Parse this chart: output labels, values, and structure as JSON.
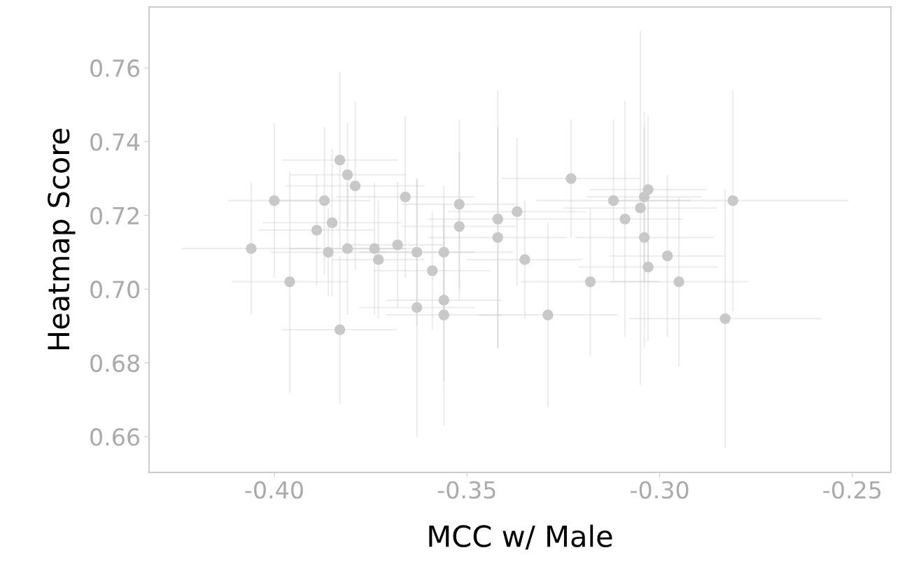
{
  "chart_data": {
    "type": "scatter",
    "xlabel": "MCC w/ Male",
    "ylabel": "Heatmap Score",
    "x": [
      -0.406,
      -0.4,
      -0.396,
      -0.389,
      -0.387,
      -0.386,
      -0.385,
      -0.383,
      -0.383,
      -0.381,
      -0.381,
      -0.379,
      -0.374,
      -0.373,
      -0.368,
      -0.366,
      -0.363,
      -0.363,
      -0.359,
      -0.356,
      -0.356,
      -0.356,
      -0.352,
      -0.352,
      -0.342,
      -0.342,
      -0.337,
      -0.335,
      -0.329,
      -0.323,
      -0.318,
      -0.312,
      -0.309,
      -0.305,
      -0.304,
      -0.303,
      -0.304,
      -0.303,
      -0.298,
      -0.295,
      -0.283,
      -0.281
    ],
    "values": [
      0.711,
      0.724,
      0.702,
      0.716,
      0.724,
      0.71,
      0.718,
      0.735,
      0.689,
      0.731,
      0.711,
      0.728,
      0.711,
      0.708,
      0.712,
      0.725,
      0.695,
      0.71,
      0.705,
      0.71,
      0.697,
      0.693,
      0.717,
      0.723,
      0.719,
      0.714,
      0.721,
      0.708,
      0.693,
      0.73,
      0.702,
      0.724,
      0.719,
      0.722,
      0.725,
      0.727,
      0.714,
      0.706,
      0.709,
      0.702,
      0.692,
      0.724
    ],
    "errors": [
      0.018,
      0.021,
      0.03,
      0.015,
      0.02,
      0.012,
      0.02,
      0.024,
      0.02,
      0.014,
      0.018,
      0.023,
      0.018,
      0.016,
      0.017,
      0.022,
      0.035,
      0.02,
      0.016,
      0.018,
      0.022,
      0.03,
      0.02,
      0.023,
      0.035,
      0.03,
      0.02,
      0.016,
      0.025,
      0.016,
      0.02,
      0.022,
      0.032,
      0.048,
      0.023,
      0.02,
      0.03,
      0.02,
      0.022,
      0.023,
      0.035,
      0.03
    ],
    "xerrors": [
      0.018,
      0.012,
      0.015,
      0.015,
      0.012,
      0.015,
      0.018,
      0.015,
      0.015,
      0.015,
      0.015,
      0.018,
      0.012,
      0.012,
      0.012,
      0.018,
      0.015,
      0.015,
      0.015,
      0.018,
      0.015,
      0.015,
      0.015,
      0.015,
      0.018,
      0.018,
      0.018,
      0.015,
      0.018,
      0.018,
      0.018,
      0.02,
      0.015,
      0.02,
      0.015,
      0.015,
      0.018,
      0.018,
      0.015,
      0.018,
      0.025,
      0.03
    ],
    "color": "#c8c8c8",
    "marker": "circle",
    "grid": false,
    "legend": false,
    "xlim": [
      -0.4325,
      -0.24
    ],
    "ylim": [
      0.6503,
      0.7765
    ],
    "xticks": [
      {
        "value": -0.4,
        "label": "-0.40"
      },
      {
        "value": -0.35,
        "label": "-0.35"
      },
      {
        "value": -0.3,
        "label": "-0.30"
      },
      {
        "value": -0.25,
        "label": "-0.25"
      }
    ],
    "yticks": [
      {
        "value": 0.66,
        "label": "0.66"
      },
      {
        "value": 0.68,
        "label": "0.68"
      },
      {
        "value": 0.7,
        "label": "0.70"
      },
      {
        "value": 0.72,
        "label": "0.72"
      },
      {
        "value": 0.74,
        "label": "0.74"
      },
      {
        "value": 0.76,
        "label": "0.76"
      }
    ]
  }
}
